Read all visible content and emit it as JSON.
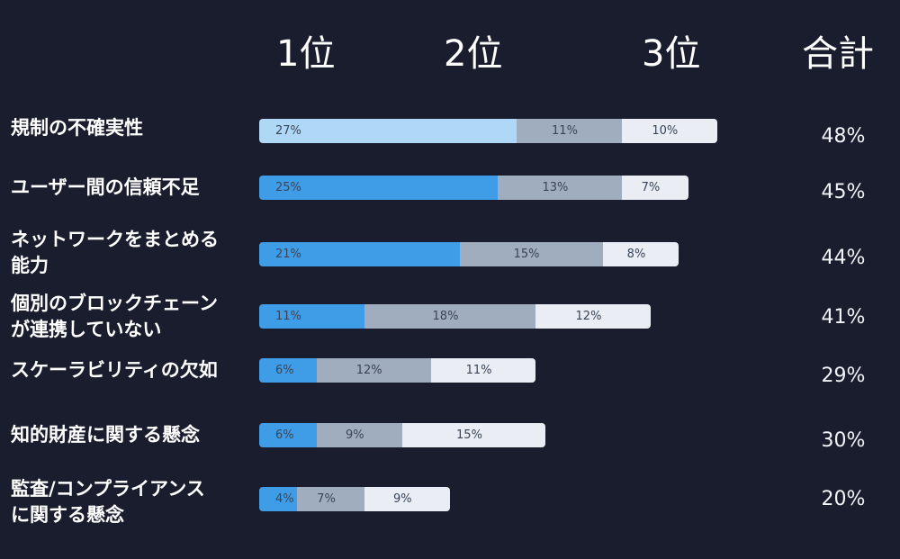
{
  "headers": [
    "1位",
    "2位",
    "3位",
    "合計"
  ],
  "colors": {
    "background": "#1a1d2e",
    "rank1_first_row": "#aed8f6",
    "rank1": "#3f9de8",
    "rank2": "#9fadbf",
    "rank3": "#eaeef4",
    "value_text": "#3a4458"
  },
  "chart_data": {
    "type": "bar",
    "orientation": "horizontal",
    "stacked": true,
    "categories": [
      "規制の不確実性",
      "ユーザー間の信頼不足",
      "ネットワークをまとめる\n能力",
      "個別のブロックチェーン\nが連携していない",
      "スケーラビリティの欠如",
      "知的財産に関する懸念",
      "監査/コンプライアンス\nに関する懸念"
    ],
    "series": [
      {
        "name": "1位",
        "values": [
          27,
          25,
          21,
          11,
          6,
          6,
          4
        ],
        "labels": [
          "27%",
          "25%",
          "21%",
          "11%",
          "6%",
          "6%",
          "4%"
        ]
      },
      {
        "name": "2位",
        "values": [
          11,
          13,
          15,
          18,
          12,
          9,
          7
        ],
        "labels": [
          "11%",
          "13%",
          "15%",
          "18%",
          "12%",
          "9%",
          "7%"
        ]
      },
      {
        "name": "3位",
        "values": [
          10,
          7,
          8,
          12,
          11,
          15,
          9
        ],
        "labels": [
          "10%",
          "7%",
          "8%",
          "12%",
          "11%",
          "15%",
          "9%"
        ]
      }
    ],
    "totals": [
      "48%",
      "45%",
      "44%",
      "41%",
      "29%",
      "30%",
      "20%"
    ]
  }
}
